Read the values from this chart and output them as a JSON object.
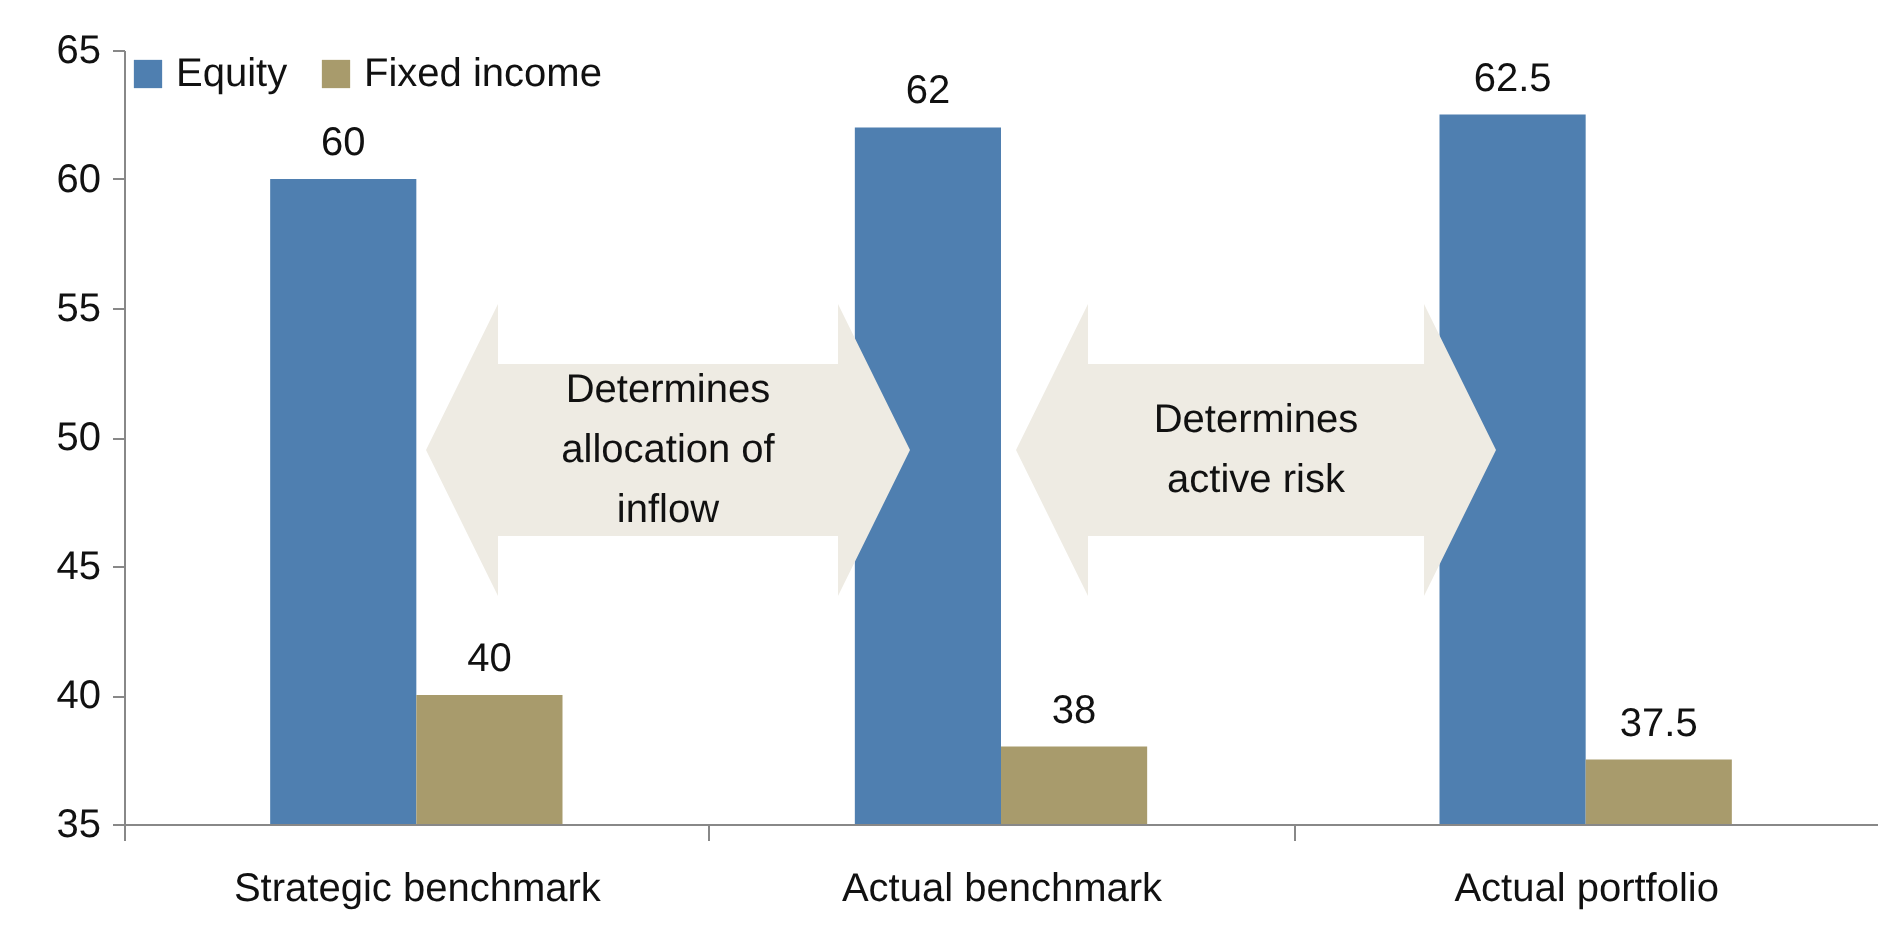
{
  "chart_data": {
    "type": "bar",
    "categories": [
      "Strategic benchmark",
      "Actual benchmark",
      "Actual portfolio"
    ],
    "series": [
      {
        "name": "Equity",
        "color": "#4f7fb0",
        "values": [
          60,
          62,
          62.5
        ]
      },
      {
        "name": "Fixed income",
        "color": "#a89b6c",
        "values": [
          40,
          38,
          37.5
        ]
      }
    ],
    "ylim": [
      35,
      65
    ],
    "yticks": [
      35,
      40,
      45,
      50,
      55,
      60,
      65
    ],
    "legend": "top left",
    "data_labels": true,
    "annotations": [
      "Determines allocation of inflow",
      "Determines active risk"
    ]
  }
}
